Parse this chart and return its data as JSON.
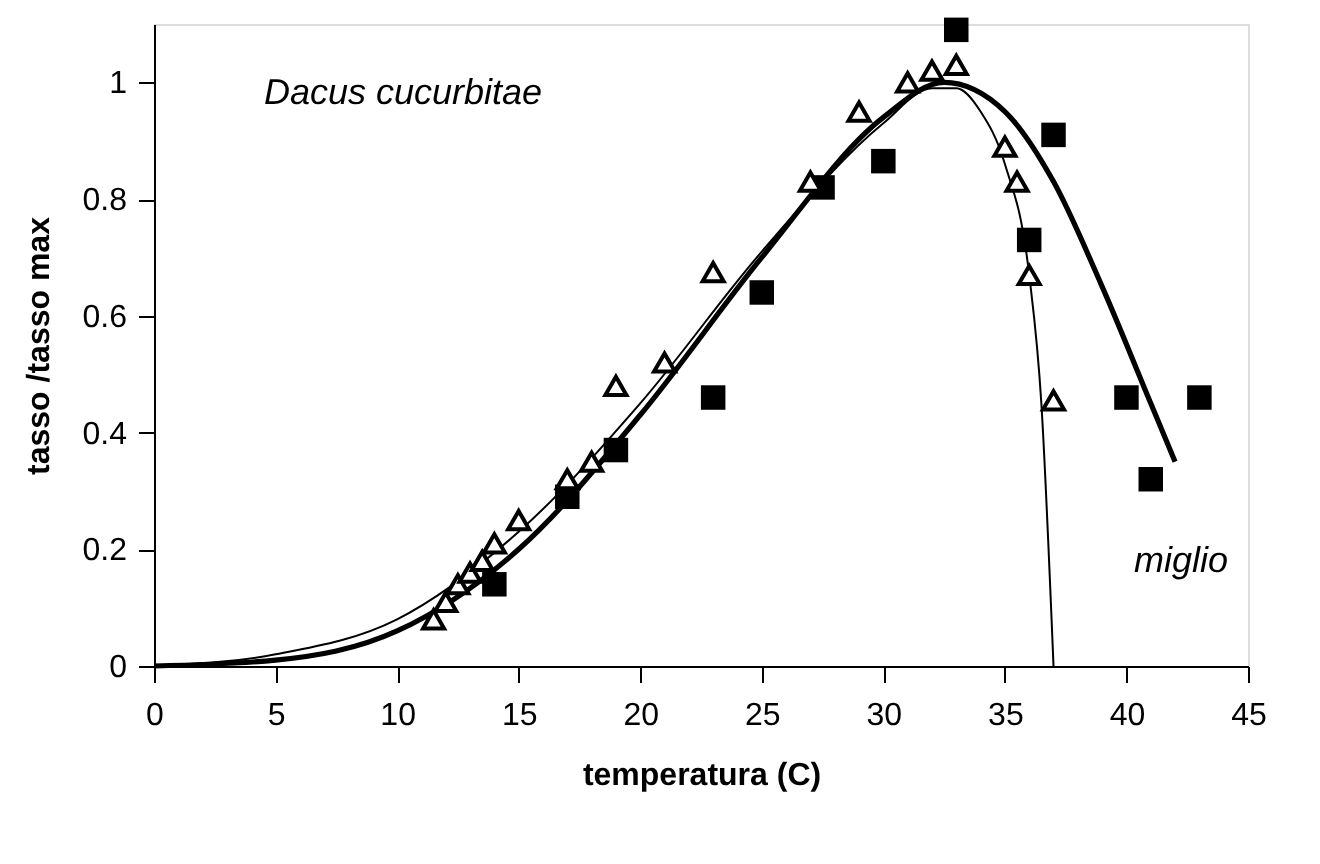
{
  "chart_data": {
    "type": "scatter",
    "xlabel": "temperatura  (C)",
    "ylabel": "tasso /tasso max",
    "xlim": [
      0,
      45
    ],
    "ylim": [
      0,
      1.1
    ],
    "xticks": [
      0,
      5,
      10,
      15,
      20,
      25,
      30,
      35,
      40,
      45
    ],
    "yticks": [
      0,
      0.2,
      0.4,
      0.6,
      0.8,
      1
    ],
    "grid": false,
    "series": [
      {
        "type": "line",
        "color": "#000000",
        "marker": "none",
        "line_style": "solid",
        "x": [
          0,
          5,
          10,
          15,
          20,
          25,
          30,
          32.5,
          35,
          37,
          39,
          41,
          42
        ],
        "values": [
          0,
          0.01,
          0.06,
          0.2,
          0.43,
          0.7,
          0.94,
          1.0,
          0.95,
          0.83,
          0.65,
          0.45,
          0.35
        ]
      },
      {
        "type": "line",
        "color": "#000000",
        "marker": "none",
        "line_style": "solid",
        "x": [
          0,
          5,
          10,
          15,
          20,
          25,
          30,
          32,
          33,
          34,
          35,
          36,
          36.5,
          37
        ],
        "values": [
          0,
          0.02,
          0.08,
          0.23,
          0.45,
          0.71,
          0.93,
          0.99,
          0.99,
          0.95,
          0.86,
          0.67,
          0.45,
          0
        ]
      },
      {
        "color": "#000000",
        "marker": "square",
        "x": [
          14,
          17,
          19,
          23,
          25,
          27.5,
          30,
          33,
          36,
          37,
          40,
          41,
          43
        ],
        "values": [
          0.14,
          0.29,
          0.37,
          0.46,
          0.64,
          0.82,
          0.865,
          1.09,
          0.73,
          0.91,
          0.46,
          0.32,
          0.46
        ]
      },
      {
        "color": "#000000",
        "marker": "triangle",
        "x": [
          11.5,
          12,
          12.5,
          13,
          13.5,
          14,
          15,
          17,
          18,
          19,
          21,
          23,
          27,
          29,
          31,
          32,
          33,
          35,
          35.5,
          36,
          37
        ],
        "values": [
          0.08,
          0.11,
          0.14,
          0.16,
          0.18,
          0.21,
          0.25,
          0.32,
          0.35,
          0.48,
          0.52,
          0.675,
          0.83,
          0.95,
          1.0,
          1.02,
          1.03,
          0.89,
          0.83,
          0.67,
          0.455
        ]
      }
    ],
    "annotations": [
      "Dacus cucurbitae",
      "miglio"
    ]
  }
}
